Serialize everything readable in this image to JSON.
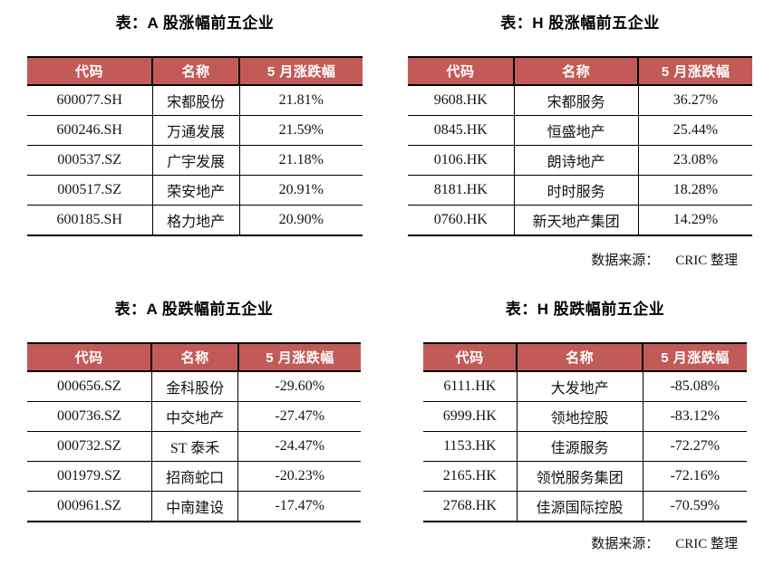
{
  "accent_color": "#c25b58",
  "border_color": "#000000",
  "columns_labels": [
    "代码",
    "名称",
    "5 月涨跌幅"
  ],
  "tables": [
    {
      "id": "a-gainers",
      "title": "表：A 股涨幅前五企业",
      "columns": [
        "代码",
        "名称",
        "5 月涨跌幅"
      ],
      "rows": [
        [
          "600077.SH",
          "宋都股份",
          "21.81%"
        ],
        [
          "600246.SH",
          "万通发展",
          "21.59%"
        ],
        [
          "000537.SZ",
          "广宇发展",
          "21.18%"
        ],
        [
          "000517.SZ",
          "荣安地产",
          "20.91%"
        ],
        [
          "600185.SH",
          "格力地产",
          "20.90%"
        ]
      ]
    },
    {
      "id": "h-gainers",
      "title": "表：H 股涨幅前五企业",
      "columns": [
        "代码",
        "名称",
        "5 月涨跌幅"
      ],
      "rows": [
        [
          "9608.HK",
          "宋都服务",
          "36.27%"
        ],
        [
          "0845.HK",
          "恒盛地产",
          "25.44%"
        ],
        [
          "0106.HK",
          "朗诗地产",
          "23.08%"
        ],
        [
          "8181.HK",
          "时时服务",
          "18.28%"
        ],
        [
          "0760.HK",
          "新天地产集团",
          "14.29%"
        ]
      ]
    },
    {
      "id": "a-losers",
      "title": "表：A 股跌幅前五企业",
      "columns": [
        "代码",
        "名称",
        "5 月涨跌幅"
      ],
      "rows": [
        [
          "000656.SZ",
          "金科股份",
          "-29.60%"
        ],
        [
          "000736.SZ",
          "中交地产",
          "-27.47%"
        ],
        [
          "000732.SZ",
          "ST 泰禾",
          "-24.47%"
        ],
        [
          "001979.SZ",
          "招商蛇口",
          "-20.23%"
        ],
        [
          "000961.SZ",
          "中南建设",
          "-17.47%"
        ]
      ]
    },
    {
      "id": "h-losers",
      "title": "表：H 股跌幅前五企业",
      "columns": [
        "代码",
        "名称",
        "5 月涨跌幅"
      ],
      "rows": [
        [
          "6111.HK",
          "大发地产",
          "-85.08%"
        ],
        [
          "6999.HK",
          "领地控股",
          "-83.12%"
        ],
        [
          "1153.HK",
          "佳源服务",
          "-72.27%"
        ],
        [
          "2165.HK",
          "领悦服务集团",
          "-72.16%"
        ],
        [
          "2768.HK",
          "佳源国际控股",
          "-70.59%"
        ]
      ]
    }
  ],
  "source_note": {
    "label": "数据来源：",
    "value": "CRIC 整理"
  }
}
